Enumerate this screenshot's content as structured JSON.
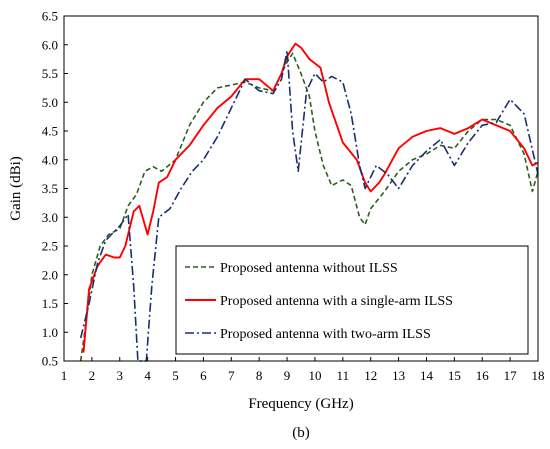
{
  "chart_data": {
    "type": "line",
    "xlabel": "Frequency (GHz)",
    "ylabel": "Gain (dBi)",
    "subfigure_label": "(b)",
    "xlim": [
      1,
      18
    ],
    "ylim": [
      0.5,
      6.5
    ],
    "xticks": [
      "1",
      "2",
      "3",
      "4",
      "5",
      "6",
      "7",
      "8",
      "9",
      "10",
      "11",
      "12",
      "13",
      "14",
      "15",
      "16",
      "17",
      "18"
    ],
    "yticks": [
      "0.5",
      "1.0",
      "1.5",
      "2.0",
      "2.5",
      "3.0",
      "3.5",
      "4.0",
      "4.5",
      "5.0",
      "5.5",
      "6.0",
      "6.5"
    ],
    "grid": false,
    "legend_position": "bottom-center",
    "series": [
      {
        "name": "Proposed antenna without ILSS",
        "color": "#2e5e1e",
        "style": "dashed",
        "points": [
          [
            1.6,
            0.5
          ],
          [
            1.8,
            1.2
          ],
          [
            2.0,
            2.0
          ],
          [
            2.3,
            2.5
          ],
          [
            2.6,
            2.7
          ],
          [
            3.0,
            2.8
          ],
          [
            3.3,
            3.2
          ],
          [
            3.6,
            3.4
          ],
          [
            3.9,
            3.8
          ],
          [
            4.2,
            3.88
          ],
          [
            4.5,
            3.8
          ],
          [
            5.0,
            4.0
          ],
          [
            5.5,
            4.6
          ],
          [
            6.0,
            5.0
          ],
          [
            6.5,
            5.25
          ],
          [
            7.0,
            5.3
          ],
          [
            7.5,
            5.35
          ],
          [
            8.0,
            5.25
          ],
          [
            8.5,
            5.2
          ],
          [
            9.0,
            5.7
          ],
          [
            9.2,
            5.85
          ],
          [
            9.5,
            5.5
          ],
          [
            9.8,
            5.1
          ],
          [
            10.0,
            4.5
          ],
          [
            10.3,
            3.9
          ],
          [
            10.6,
            3.55
          ],
          [
            11.0,
            3.65
          ],
          [
            11.3,
            3.55
          ],
          [
            11.6,
            3.0
          ],
          [
            11.8,
            2.87
          ],
          [
            12.0,
            3.15
          ],
          [
            12.5,
            3.45
          ],
          [
            13.0,
            3.8
          ],
          [
            13.5,
            4.0
          ],
          [
            14.0,
            4.1
          ],
          [
            14.5,
            4.25
          ],
          [
            15.0,
            4.2
          ],
          [
            15.5,
            4.5
          ],
          [
            16.0,
            4.7
          ],
          [
            16.5,
            4.7
          ],
          [
            17.0,
            4.6
          ],
          [
            17.5,
            4.1
          ],
          [
            17.8,
            3.45
          ],
          [
            18.0,
            3.8
          ]
        ]
      },
      {
        "name": "Proposed antenna with a single-arm ILSS",
        "color": "#ff0000",
        "style": "solid",
        "points": [
          [
            1.7,
            0.65
          ],
          [
            1.9,
            1.75
          ],
          [
            2.2,
            2.15
          ],
          [
            2.5,
            2.35
          ],
          [
            2.8,
            2.3
          ],
          [
            3.0,
            2.3
          ],
          [
            3.2,
            2.5
          ],
          [
            3.5,
            3.1
          ],
          [
            3.7,
            3.2
          ],
          [
            4.0,
            2.7
          ],
          [
            4.2,
            3.1
          ],
          [
            4.4,
            3.6
          ],
          [
            4.7,
            3.7
          ],
          [
            5.0,
            4.0
          ],
          [
            5.5,
            4.25
          ],
          [
            6.0,
            4.6
          ],
          [
            6.5,
            4.9
          ],
          [
            7.0,
            5.1
          ],
          [
            7.5,
            5.4
          ],
          [
            8.0,
            5.4
          ],
          [
            8.5,
            5.2
          ],
          [
            8.8,
            5.5
          ],
          [
            9.0,
            5.8
          ],
          [
            9.3,
            6.02
          ],
          [
            9.5,
            5.95
          ],
          [
            9.8,
            5.75
          ],
          [
            10.2,
            5.6
          ],
          [
            10.5,
            5.0
          ],
          [
            11.0,
            4.3
          ],
          [
            11.5,
            4.0
          ],
          [
            11.8,
            3.6
          ],
          [
            12.0,
            3.45
          ],
          [
            12.3,
            3.6
          ],
          [
            12.5,
            3.75
          ],
          [
            13.0,
            4.2
          ],
          [
            13.5,
            4.4
          ],
          [
            14.0,
            4.5
          ],
          [
            14.5,
            4.55
          ],
          [
            15.0,
            4.45
          ],
          [
            15.5,
            4.55
          ],
          [
            16.0,
            4.7
          ],
          [
            16.5,
            4.6
          ],
          [
            17.0,
            4.5
          ],
          [
            17.5,
            4.2
          ],
          [
            17.8,
            3.9
          ],
          [
            18.0,
            3.95
          ]
        ]
      },
      {
        "name": "Proposed antenna with two-arm ILSS",
        "color": "#1a2f6e",
        "style": "dashdot",
        "points": [
          [
            1.6,
            0.9
          ],
          [
            1.9,
            1.5
          ],
          [
            2.2,
            2.2
          ],
          [
            2.5,
            2.6
          ],
          [
            2.8,
            2.75
          ],
          [
            3.0,
            2.85
          ],
          [
            3.3,
            3.05
          ],
          [
            3.5,
            1.8
          ],
          [
            3.65,
            0.5
          ],
          [
            3.95,
            0.5
          ],
          [
            4.15,
            1.8
          ],
          [
            4.4,
            3.0
          ],
          [
            4.8,
            3.15
          ],
          [
            5.2,
            3.5
          ],
          [
            5.6,
            3.8
          ],
          [
            6.0,
            4.0
          ],
          [
            6.5,
            4.4
          ],
          [
            7.0,
            4.9
          ],
          [
            7.5,
            5.4
          ],
          [
            8.0,
            5.2
          ],
          [
            8.5,
            5.15
          ],
          [
            8.8,
            5.4
          ],
          [
            9.0,
            5.9
          ],
          [
            9.2,
            4.5
          ],
          [
            9.4,
            3.8
          ],
          [
            9.7,
            5.2
          ],
          [
            10.0,
            5.5
          ],
          [
            10.3,
            5.35
          ],
          [
            10.6,
            5.45
          ],
          [
            11.0,
            5.35
          ],
          [
            11.3,
            4.8
          ],
          [
            11.6,
            3.9
          ],
          [
            11.8,
            3.5
          ],
          [
            12.2,
            3.9
          ],
          [
            12.6,
            3.75
          ],
          [
            13.0,
            3.5
          ],
          [
            13.5,
            3.9
          ],
          [
            14.0,
            4.15
          ],
          [
            14.5,
            4.35
          ],
          [
            15.0,
            3.9
          ],
          [
            15.5,
            4.3
          ],
          [
            16.0,
            4.6
          ],
          [
            16.5,
            4.65
          ],
          [
            17.0,
            5.05
          ],
          [
            17.5,
            4.8
          ],
          [
            18.0,
            3.75
          ]
        ]
      }
    ]
  }
}
